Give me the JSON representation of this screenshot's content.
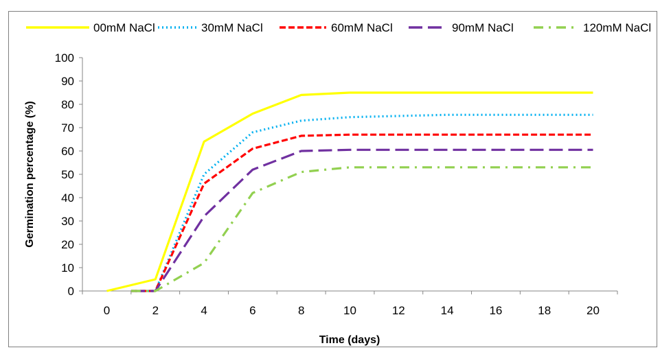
{
  "chart_data": {
    "type": "line",
    "title": "",
    "xlabel": "Time (days)",
    "ylabel": "Germination percentage (%)",
    "x_ticks": [
      "0",
      "2",
      "4",
      "6",
      "8",
      "10",
      "12",
      "14",
      "16",
      "18",
      "20"
    ],
    "y_ticks": [
      "0",
      "10",
      "20",
      "30",
      "40",
      "50",
      "60",
      "70",
      "80",
      "90",
      "100"
    ],
    "xlim": [
      0,
      20
    ],
    "ylim": [
      0,
      100
    ],
    "grid": false,
    "legend_position": "top",
    "series": [
      {
        "name": "00mM NaCl",
        "color": "#ffff00",
        "dash": "solid",
        "points": [
          [
            0,
            0
          ],
          [
            2,
            5
          ],
          [
            4,
            64
          ],
          [
            6,
            76
          ],
          [
            8,
            84
          ],
          [
            10,
            85
          ],
          [
            20,
            85
          ]
        ]
      },
      {
        "name": "30mM NaCl",
        "color": "#00b0f0",
        "dash": "dotted",
        "points": [
          [
            1,
            0
          ],
          [
            2,
            0
          ],
          [
            4,
            50
          ],
          [
            6,
            68
          ],
          [
            8,
            73
          ],
          [
            10,
            74.5
          ],
          [
            14,
            75.5
          ],
          [
            20,
            75.5
          ]
        ]
      },
      {
        "name": "60mM NaCl",
        "color": "#ff0000",
        "dash": "dashed",
        "points": [
          [
            1,
            0
          ],
          [
            2,
            0
          ],
          [
            4,
            46
          ],
          [
            6,
            61
          ],
          [
            8,
            66.5
          ],
          [
            10,
            67
          ],
          [
            20,
            67
          ]
        ]
      },
      {
        "name": "90mM NaCl",
        "color": "#7030a0",
        "dash": "long-dash",
        "points": [
          [
            1,
            0
          ],
          [
            2,
            0
          ],
          [
            4,
            32
          ],
          [
            6,
            52
          ],
          [
            8,
            60
          ],
          [
            10,
            60.5
          ],
          [
            20,
            60.5
          ]
        ]
      },
      {
        "name": "120mM NaCl",
        "color": "#92d050",
        "dash": "dash-dot",
        "points": [
          [
            1,
            0
          ],
          [
            2,
            0
          ],
          [
            4,
            12
          ],
          [
            6,
            42
          ],
          [
            8,
            51
          ],
          [
            10,
            53
          ],
          [
            20,
            53
          ]
        ]
      }
    ]
  }
}
